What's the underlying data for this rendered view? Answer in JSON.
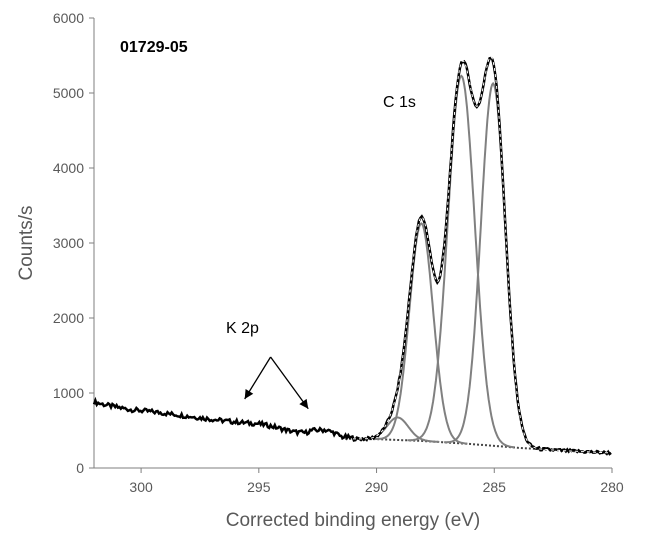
{
  "chart_data": {
    "type": "line",
    "title": "01729-05",
    "xlabel": "Corrected binding  energy (eV)",
    "ylabel": "Counts/s",
    "xlim": [
      302,
      280
    ],
    "ylim": [
      0,
      6000
    ],
    "x_reversed": true,
    "grid": false,
    "legend": "none",
    "xticks": [
      300,
      295,
      290,
      285,
      280
    ],
    "yticks": [
      0,
      1000,
      2000,
      3000,
      4000,
      5000,
      6000
    ],
    "annotations": [
      {
        "text": "C 1s",
        "x": 287.3,
        "y": 4950
      },
      {
        "text": "K 2p",
        "x": 295.1,
        "y": 1790
      }
    ],
    "arrows": [
      {
        "from": [
          294.5,
          1480
        ],
        "to": [
          295.6,
          920
        ]
      },
      {
        "from": [
          294.5,
          1480
        ],
        "to": [
          292.9,
          790
        ]
      }
    ],
    "colors": {
      "envelope": "#000000",
      "measured": "#000000",
      "components": "#808080",
      "background": "#444444",
      "axis": "#7f7f7f"
    },
    "background_line": [
      {
        "x": 291.5,
        "y": 390
      },
      {
        "x": 290,
        "y": 385
      },
      {
        "x": 288,
        "y": 360
      },
      {
        "x": 286,
        "y": 320
      },
      {
        "x": 284,
        "y": 270
      },
      {
        "x": 282,
        "y": 230
      },
      {
        "x": 280,
        "y": 200
      }
    ],
    "components": [
      {
        "center": 289.1,
        "height": 300,
        "sigma": 0.45
      },
      {
        "center": 288.1,
        "height": 2900,
        "sigma": 0.5
      },
      {
        "center": 286.4,
        "height": 4900,
        "sigma": 0.57
      },
      {
        "center": 285.05,
        "height": 4830,
        "sigma": 0.52
      }
    ],
    "survey_points": [
      {
        "x": 302,
        "y": 880
      },
      {
        "x": 301.5,
        "y": 840
      },
      {
        "x": 300.5,
        "y": 780
      },
      {
        "x": 299.5,
        "y": 750
      },
      {
        "x": 298.5,
        "y": 710
      },
      {
        "x": 297.5,
        "y": 670
      },
      {
        "x": 296.5,
        "y": 630
      },
      {
        "x": 295.5,
        "y": 600
      },
      {
        "x": 295,
        "y": 590
      },
      {
        "x": 294.5,
        "y": 560
      },
      {
        "x": 294,
        "y": 520
      },
      {
        "x": 293.5,
        "y": 480
      },
      {
        "x": 293,
        "y": 470
      },
      {
        "x": 292.8,
        "y": 500
      },
      {
        "x": 292.2,
        "y": 510
      },
      {
        "x": 291.8,
        "y": 470
      },
      {
        "x": 291.5,
        "y": 420
      },
      {
        "x": 291,
        "y": 400
      }
    ]
  }
}
